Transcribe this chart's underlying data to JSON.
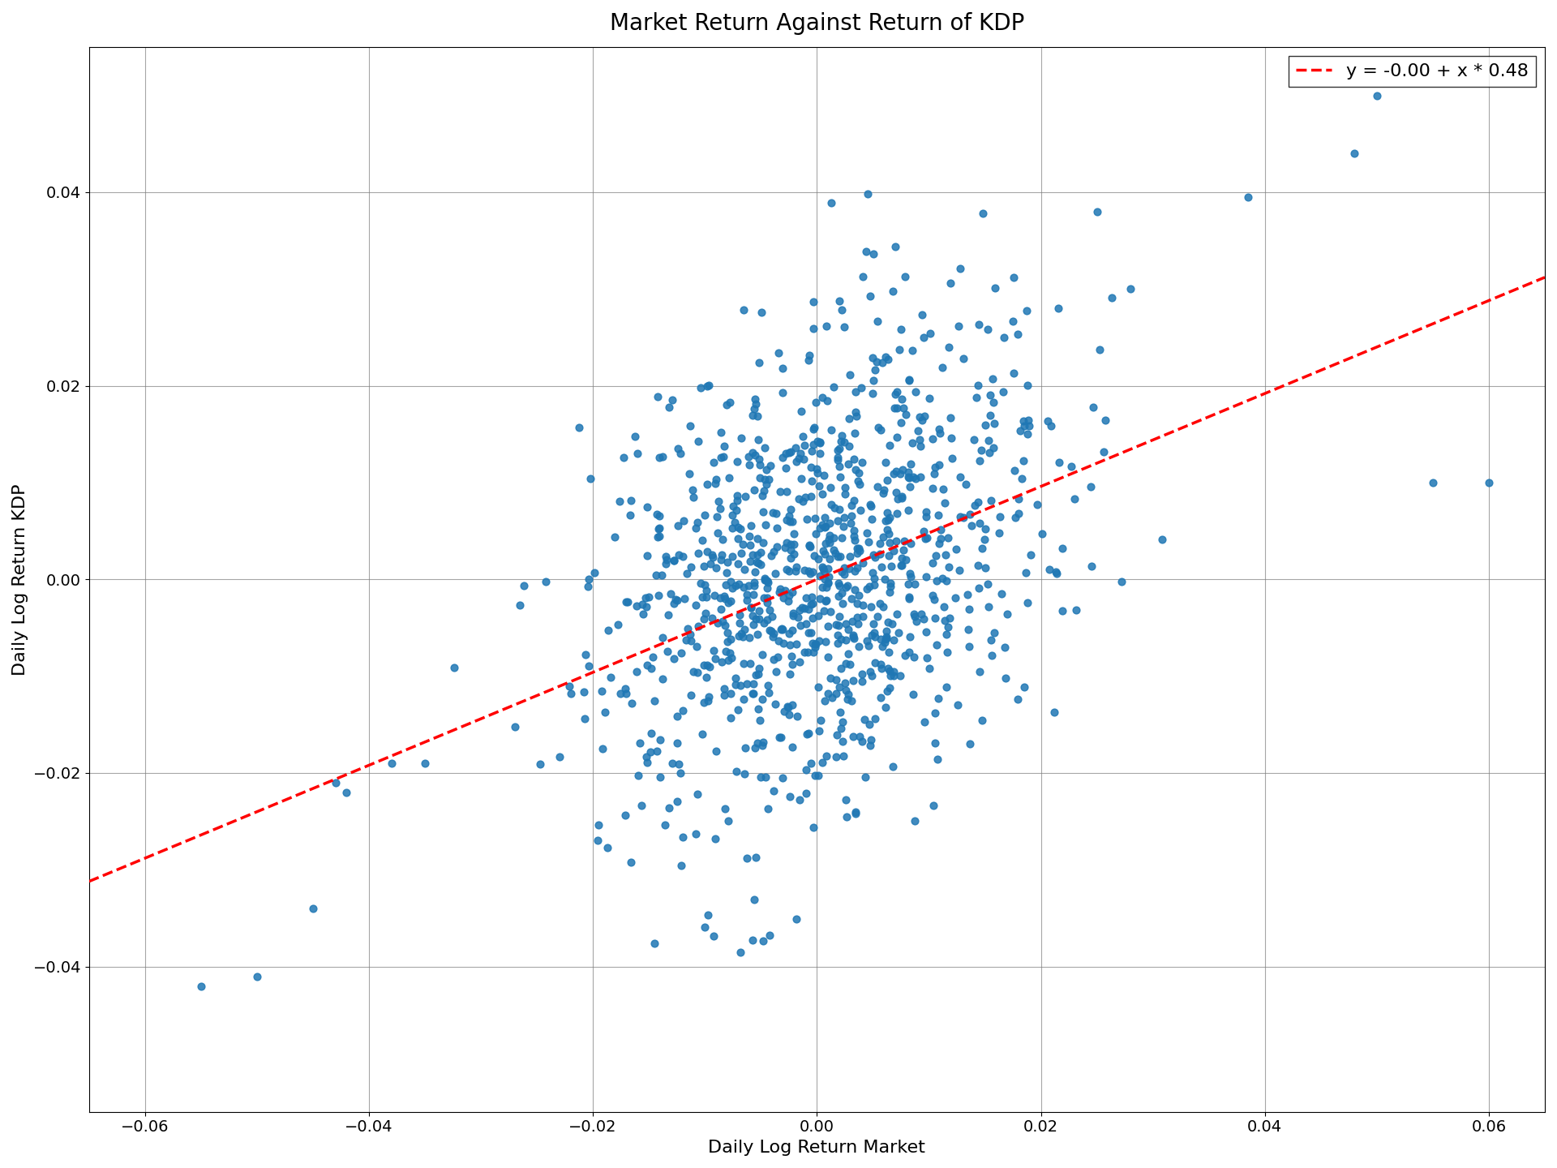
{
  "title": "Market Return Against Return of KDP",
  "xlabel": "Daily Log Return Market",
  "ylabel": "Daily Log Return KDP",
  "intercept": -0.0,
  "slope": 0.48,
  "legend_label": "y = -0.00 + x * 0.48",
  "dot_color": "#1f77b4",
  "line_color": "#ff0000",
  "dot_size": 40,
  "xlim": [
    -0.065,
    0.065
  ],
  "ylim": [
    -0.055,
    0.055
  ],
  "seed": 42,
  "n_points": 1000,
  "title_fontsize": 20,
  "label_fontsize": 16,
  "tick_fontsize": 14
}
